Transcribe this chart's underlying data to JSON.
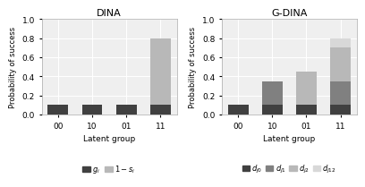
{
  "dina": {
    "title": "DINA",
    "categories": [
      "00",
      "10",
      "01",
      "11"
    ],
    "gi_values": [
      0.1,
      0.1,
      0.1,
      0.1
    ],
    "one_minus_si_values": [
      0.0,
      0.0,
      0.0,
      0.7
    ],
    "colors": [
      "#404040",
      "#b8b8b8"
    ],
    "legend_labels": [
      "$g_i$",
      "$1-s_i$"
    ]
  },
  "gdina": {
    "title": "G-DINA",
    "categories": [
      "00",
      "10",
      "01",
      "11"
    ],
    "d0": [
      0.1,
      0.1,
      0.1,
      0.1
    ],
    "d1": [
      0.0,
      0.25,
      0.0,
      0.25
    ],
    "d2": [
      0.0,
      0.0,
      0.35,
      0.35
    ],
    "d12": [
      0.0,
      0.0,
      0.0,
      0.1
    ],
    "colors": [
      "#404040",
      "#808080",
      "#b8b8b8",
      "#d8d8d8"
    ],
    "legend_labels": [
      "$d_{j0}$",
      "$d_{j1}$",
      "$d_{j2}$",
      "$d_{j12}$"
    ]
  },
  "ylabel": "Probability of success",
  "xlabel": "Latent group",
  "ylim": [
    0,
    1.0
  ],
  "yticks": [
    0.0,
    0.2,
    0.4,
    0.6,
    0.8,
    1.0
  ],
  "background_color": "#efefef",
  "fig_facecolor": "#ffffff"
}
